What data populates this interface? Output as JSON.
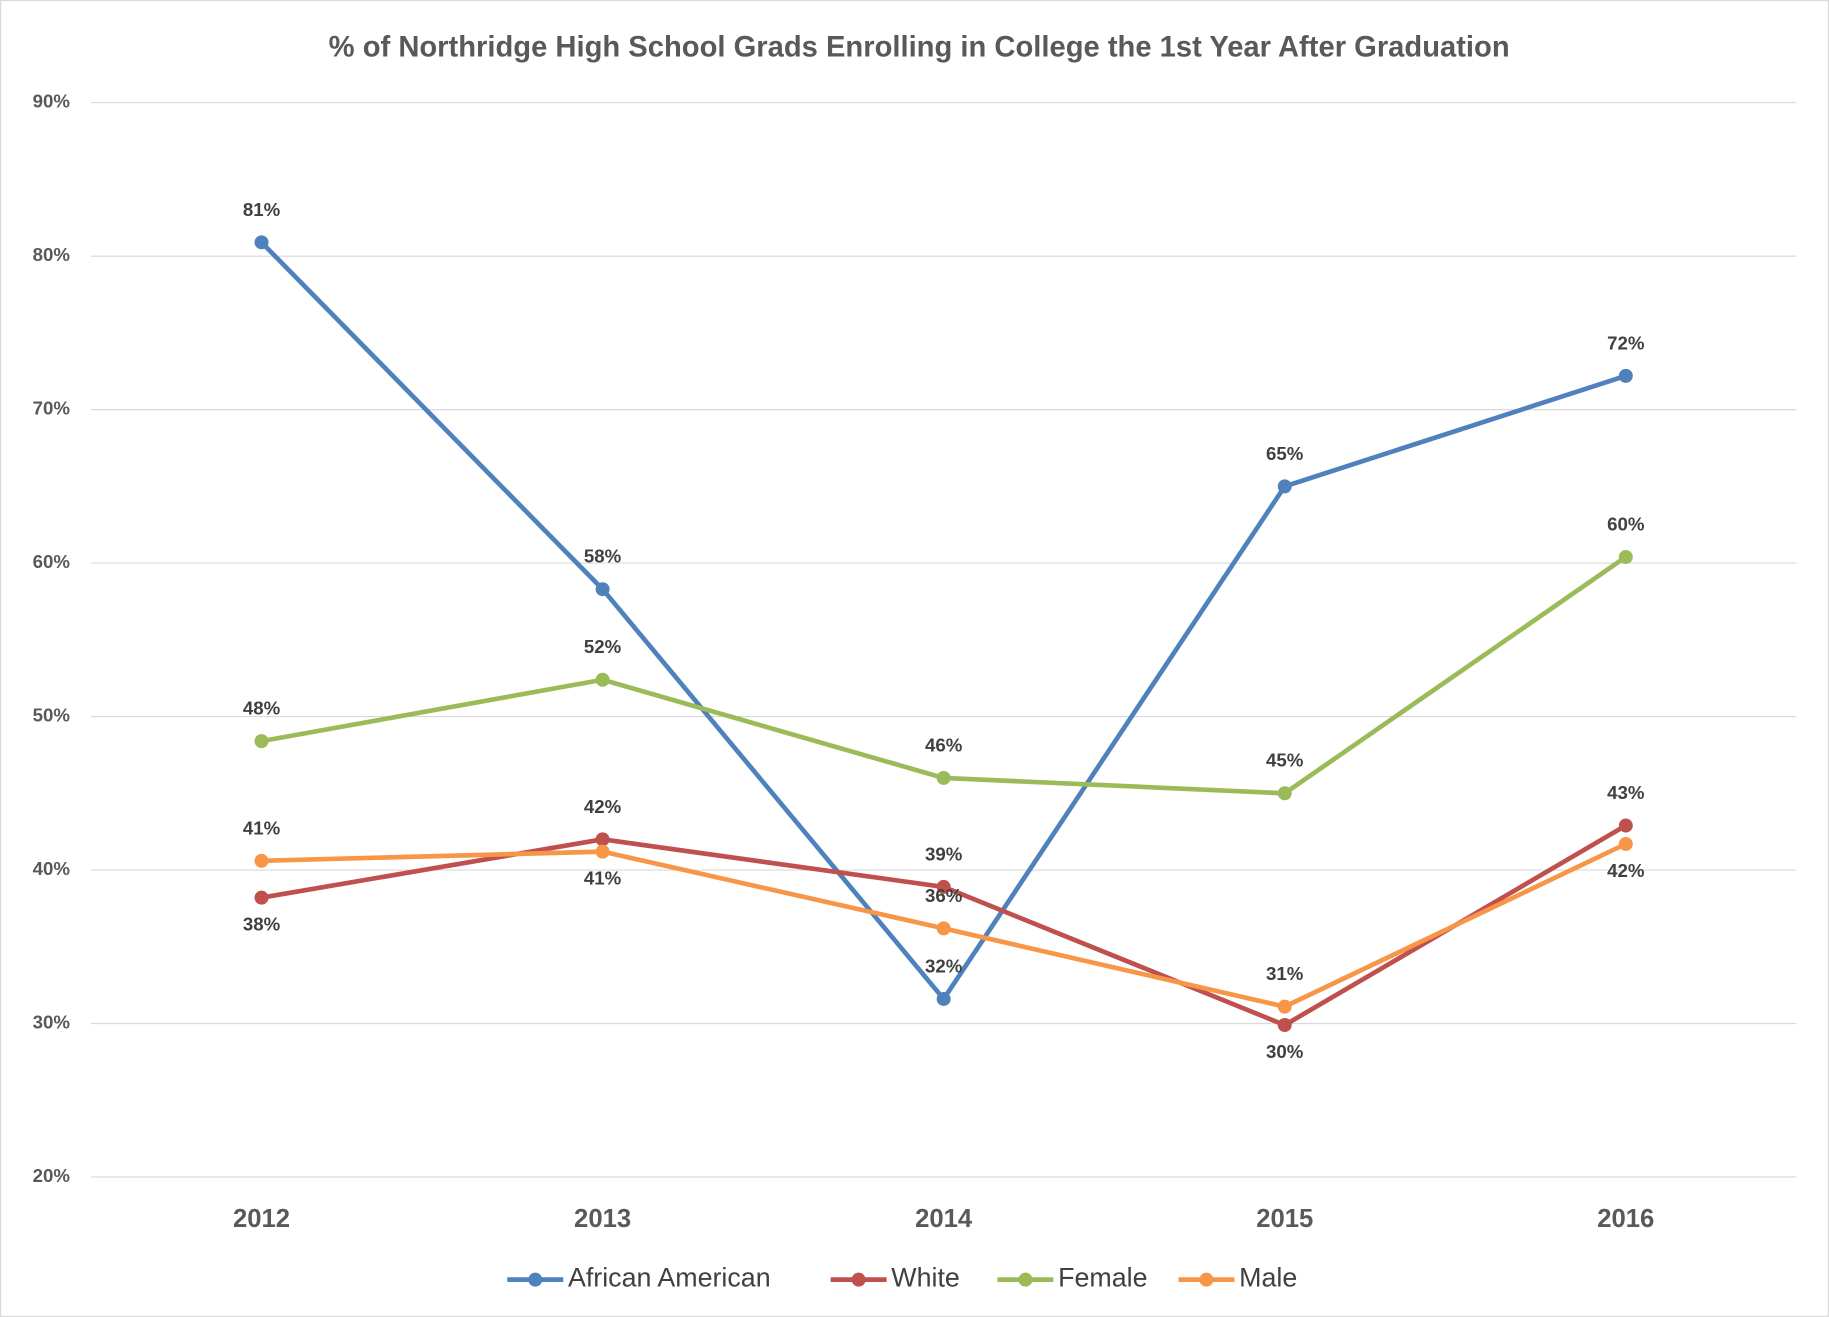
{
  "chart_data": {
    "type": "line",
    "title": "% of Northridge High School Grads Enrolling in College the 1st Year After Graduation",
    "categories": [
      "2012",
      "2013",
      "2014",
      "2015",
      "2016"
    ],
    "ylim": [
      20,
      90
    ],
    "yticks": [
      {
        "value": 20,
        "label": "20%"
      },
      {
        "value": 30,
        "label": "30%"
      },
      {
        "value": 40,
        "label": "40%"
      },
      {
        "value": 50,
        "label": "50%"
      },
      {
        "value": 60,
        "label": "60%"
      },
      {
        "value": 70,
        "label": "70%"
      },
      {
        "value": 80,
        "label": "80%"
      },
      {
        "value": 90,
        "label": "90%"
      }
    ],
    "grid": true,
    "legend": "bottom",
    "series": [
      {
        "name": "African American",
        "color": "#4f81bd",
        "values": [
          80.9,
          58.3,
          31.6,
          65,
          72.2
        ],
        "value_labels": [
          "81%",
          "58%",
          "32%",
          "65%",
          "72%"
        ]
      },
      {
        "name": "White",
        "color": "#c0504d",
        "values": [
          38.2,
          42,
          38.9,
          29.9,
          42.9
        ],
        "value_labels": [
          "38%",
          "42%",
          "39%",
          "30%",
          "43%"
        ]
      },
      {
        "name": "Female",
        "color": "#9bbb59",
        "values": [
          48.4,
          52.4,
          46,
          45,
          60.4
        ],
        "value_labels": [
          "48%",
          "52%",
          "46%",
          "45%",
          "60%"
        ]
      },
      {
        "name": "Male",
        "color": "#f79646",
        "values": [
          40.6,
          41.2,
          36.2,
          31.1,
          41.7
        ],
        "value_labels": [
          "41%",
          "41%",
          "36%",
          "31%",
          "42%"
        ]
      }
    ]
  }
}
